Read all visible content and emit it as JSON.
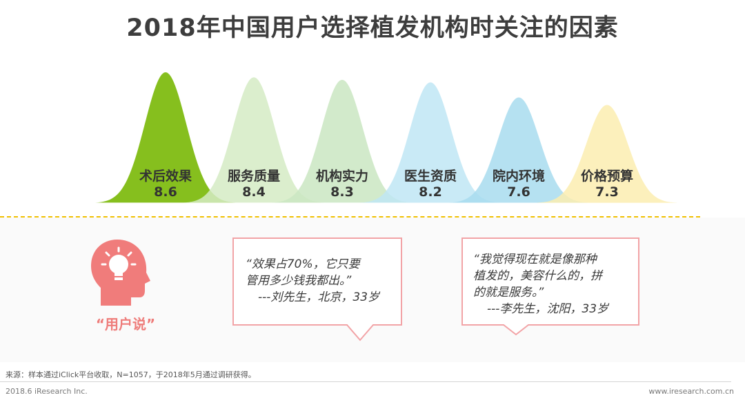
{
  "title": "2018年中国用户选择植发机构时关注的因素",
  "chart_data": {
    "type": "area",
    "categories": [
      "术后效果",
      "服务质量",
      "机构实力",
      "医生资质",
      "院内环境",
      "价格预算"
    ],
    "values": [
      8.6,
      8.4,
      8.3,
      8.2,
      7.6,
      7.3
    ],
    "colors": [
      "#86bf1e",
      "#d5ebc4",
      "#cae6c2",
      "#bfe6f5",
      "#a8dcef",
      "#fbedb0"
    ],
    "ylim": [
      0,
      10
    ]
  },
  "users_say": "“用户说”",
  "quote1": {
    "lines": [
      "“效果占70%，它只要",
      "管用多少钱我都出。”"
    ],
    "author": "---刘先生，北京，33岁"
  },
  "quote2": {
    "lines": [
      "“我觉得现在就是像那种",
      "植发的，美容什么的，拼",
      "的就是服务。”"
    ],
    "author": "---李先生，沈阳，33岁"
  },
  "footer": {
    "source": "来源：样本通过iClick平台收取，N=1057，于2018年5月通过调研获得。",
    "copyright": "2018.6 iResearch Inc.",
    "website": "www.iresearch.com.cn"
  },
  "icon_color": "#f07c7b"
}
